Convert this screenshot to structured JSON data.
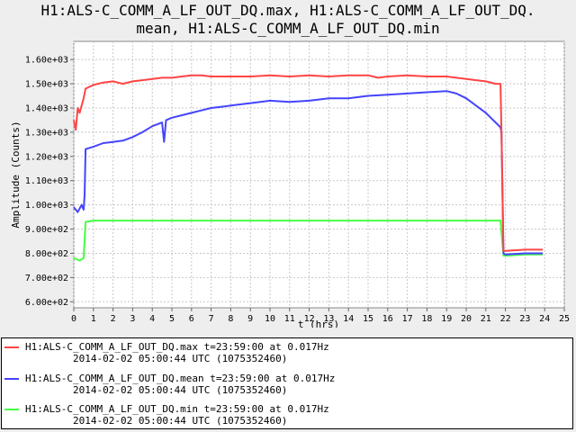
{
  "title": {
    "line1": "H1:ALS-C_COMM_A_LF_OUT_DQ.max, H1:ALS-C_COMM_A_LF_OUT_DQ.",
    "line2": "mean, H1:ALS-C_COMM_A_LF_OUT_DQ.min"
  },
  "chart_data": {
    "type": "line",
    "xlabel": "t (hrs)",
    "ylabel": "Amplitude (Counts)",
    "xlim": [
      0,
      25
    ],
    "ylim": [
      575,
      1675
    ],
    "x_ticks": [
      "0",
      "1",
      "2",
      "3",
      "4",
      "5",
      "6",
      "7",
      "8",
      "9",
      "10",
      "11",
      "12",
      "13",
      "14",
      "15",
      "16",
      "17",
      "18",
      "19",
      "20",
      "21",
      "22",
      "23",
      "24",
      "25"
    ],
    "y_ticks": [
      "6.00e+02",
      "7.00e+02",
      "8.00e+02",
      "9.00e+02",
      "1.00e+03",
      "1.10e+03",
      "1.20e+03",
      "1.30e+03",
      "1.40e+03",
      "1.50e+03",
      "1.60e+03"
    ],
    "grid": true,
    "series": [
      {
        "name": "H1:ALS-C_COMM_A_LF_OUT_DQ.max",
        "color": "#ff4444",
        "x": [
          0,
          0.1,
          0.2,
          0.3,
          0.5,
          0.6,
          1,
          1.5,
          2,
          2.5,
          3,
          3.5,
          4,
          4.5,
          5,
          5.5,
          6,
          6.5,
          7,
          8,
          9,
          10,
          11,
          12,
          13,
          14,
          15,
          15.5,
          16,
          17,
          18,
          19,
          19.5,
          20,
          20.5,
          21,
          21.5,
          21.75,
          21.8,
          21.9,
          22,
          23,
          23.9
        ],
        "y": [
          1350,
          1310,
          1400,
          1380,
          1440,
          1480,
          1495,
          1505,
          1510,
          1500,
          1510,
          1515,
          1520,
          1525,
          1525,
          1530,
          1535,
          1535,
          1530,
          1530,
          1530,
          1535,
          1530,
          1535,
          1530,
          1535,
          1535,
          1525,
          1530,
          1535,
          1530,
          1530,
          1525,
          1520,
          1515,
          1510,
          1500,
          1500,
          1300,
          810,
          810,
          815,
          815
        ]
      },
      {
        "name": "H1:ALS-C_COMM_A_LF_OUT_DQ.mean",
        "color": "#4444ff",
        "x": [
          0,
          0.2,
          0.4,
          0.5,
          0.55,
          0.6,
          1,
          1.5,
          2,
          2.5,
          3,
          3.5,
          4,
          4.5,
          4.6,
          4.7,
          5,
          5.5,
          6,
          6.5,
          7,
          7.5,
          8,
          9,
          10,
          11,
          12,
          13,
          14,
          15,
          16,
          17,
          18,
          19,
          19.5,
          20,
          20.5,
          21,
          21.5,
          21.75,
          21.8,
          21.9,
          22,
          23,
          23.9
        ],
        "y": [
          990,
          970,
          1000,
          980,
          1040,
          1230,
          1240,
          1255,
          1260,
          1265,
          1280,
          1300,
          1325,
          1340,
          1260,
          1350,
          1360,
          1370,
          1380,
          1390,
          1400,
          1405,
          1410,
          1420,
          1430,
          1425,
          1430,
          1440,
          1440,
          1450,
          1455,
          1460,
          1465,
          1470,
          1460,
          1440,
          1410,
          1380,
          1340,
          1320,
          1300,
          800,
          795,
          800,
          800
        ]
      },
      {
        "name": "H1:ALS-C_COMM_A_LF_OUT_DQ.min",
        "color": "#44ff44",
        "x": [
          0,
          0.3,
          0.5,
          0.6,
          1,
          2,
          3,
          4,
          5,
          6,
          7,
          8,
          9,
          10,
          11,
          12,
          13,
          14,
          15,
          16,
          17,
          18,
          19,
          20,
          21,
          21.75,
          21.9,
          22,
          23,
          23.9
        ],
        "y": [
          780,
          770,
          780,
          930,
          935,
          935,
          935,
          935,
          935,
          935,
          935,
          935,
          935,
          935,
          935,
          935,
          935,
          935,
          935,
          935,
          935,
          935,
          935,
          935,
          935,
          935,
          790,
          790,
          795,
          795
        ]
      }
    ]
  },
  "legend": [
    {
      "name": "H1:ALS-C_COMM_A_LF_OUT_DQ.max t=23:59:00 at 0.017Hz",
      "time": "2014-02-02 05:00:44 UTC (1075352460)",
      "color": "#ff4444"
    },
    {
      "name": "H1:ALS-C_COMM_A_LF_OUT_DQ.mean t=23:59:00 at 0.017Hz",
      "time": "2014-02-02 05:00:44 UTC (1075352460)",
      "color": "#4444ff"
    },
    {
      "name": "H1:ALS-C_COMM_A_LF_OUT_DQ.min t=23:59:00 at 0.017Hz",
      "time": "2014-02-02 05:00:44 UTC (1075352460)",
      "color": "#44ff44"
    }
  ]
}
